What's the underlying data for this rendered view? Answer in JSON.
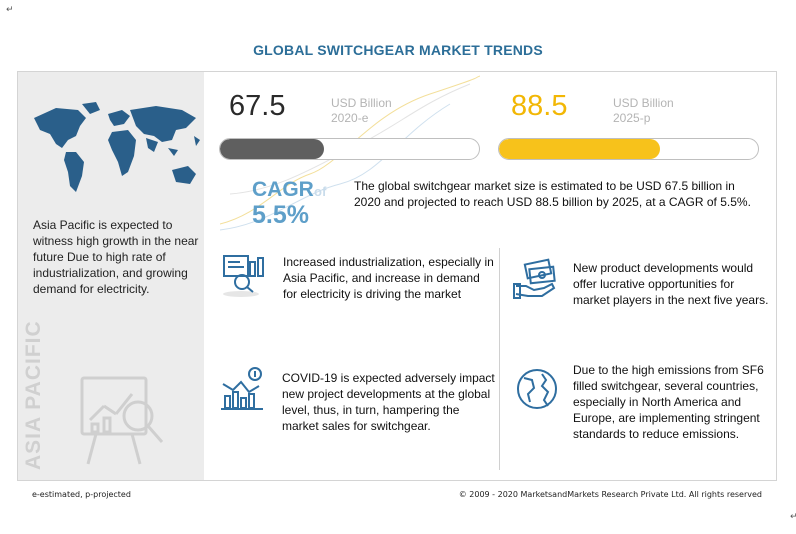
{
  "marks": {
    "paragraph": "↵"
  },
  "title": "GLOBAL SWITCHGEAR MARKET TRENDS",
  "left": {
    "description": "Asia Pacific is expected to witness high growth in the near future Due to high rate of industrialization, and growing demand for electricity.",
    "vertical_label": "ASIA PACIFIC"
  },
  "metrics": [
    {
      "value": "67.5",
      "unit": "USD Billion",
      "year": "2020-e",
      "fill_fraction": 0.4,
      "color": "#5f5f5f"
    },
    {
      "value": "88.5",
      "unit": "USD Billion",
      "year": "2025-p",
      "fill_fraction": 0.62,
      "color": "#f7c21b"
    }
  ],
  "cagr": {
    "label": "CAGR",
    "of": "of",
    "value": "5.5%",
    "summary": "The global switchgear market size is estimated to be USD 67.5 billion in 2020 and projected to reach USD 88.5 billion by 2025, at a CAGR of 5.5%."
  },
  "insights": [
    {
      "icon": "industrial-analysis-icon",
      "text": "Increased industrialization, especially in Asia Pacific, and increase in demand for electricity is driving the market"
    },
    {
      "icon": "money-hand-icon",
      "text": "New product developments would offer lucrative opportunities for market players in the next five years."
    },
    {
      "icon": "market-decline-icon",
      "text": "COVID-19 is expected adversely impact new project developments at the global level, thus, in turn, hampering the market sales for switchgear."
    },
    {
      "icon": "globe-icon",
      "text": "Due to the high emissions from SF6 filled switchgear, several countries, especially in North America and Europe, are implementing stringent standards to reduce emissions."
    }
  ],
  "footer": {
    "left": "e-estimated, p-projected",
    "right": "© 2009 - 2020 MarketsandMarkets Research Private Ltd. All rights reserved"
  },
  "colors": {
    "title": "#2c6e98",
    "accent_blue": "#5e9fc9",
    "accent_yellow": "#f7c21b",
    "bar_dark": "#5f5f5f",
    "panel": "#ececec"
  }
}
